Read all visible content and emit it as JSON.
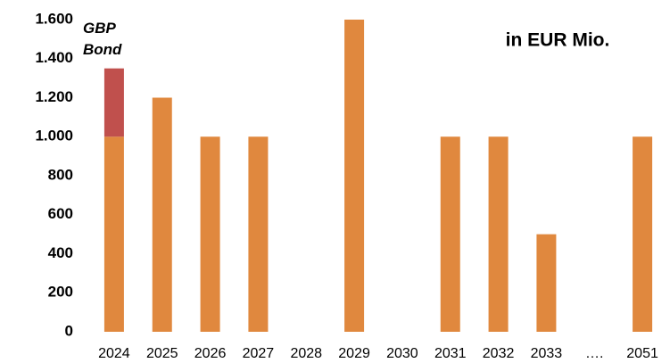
{
  "chart_data": {
    "type": "stacked_bar",
    "annotation": "in EUR Mio.",
    "categories": [
      "2024",
      "2025",
      "2026",
      "2027",
      "2028",
      "2029",
      "2030",
      "2031",
      "2032",
      "2033",
      "….",
      "2051"
    ],
    "series": [
      {
        "color": "#e0883e",
        "values": [
          1000,
          1200,
          1000,
          1000,
          null,
          1600,
          null,
          1000,
          1000,
          500,
          null,
          1000
        ]
      },
      {
        "name": "GBP Bond",
        "color": "#c0504d",
        "values": [
          350,
          null,
          null,
          null,
          null,
          null,
          null,
          null,
          null,
          null,
          null,
          null
        ]
      }
    ],
    "ylim": [
      0,
      1600
    ],
    "yticks": [
      0,
      200,
      400,
      600,
      800,
      {
        "value": 1000,
        "label": "1.000"
      },
      {
        "value": 1200,
        "label": "1.200"
      },
      {
        "value": 1400,
        "label": "1.400"
      },
      {
        "value": 1600,
        "label": "1.600"
      }
    ],
    "grid": false
  }
}
